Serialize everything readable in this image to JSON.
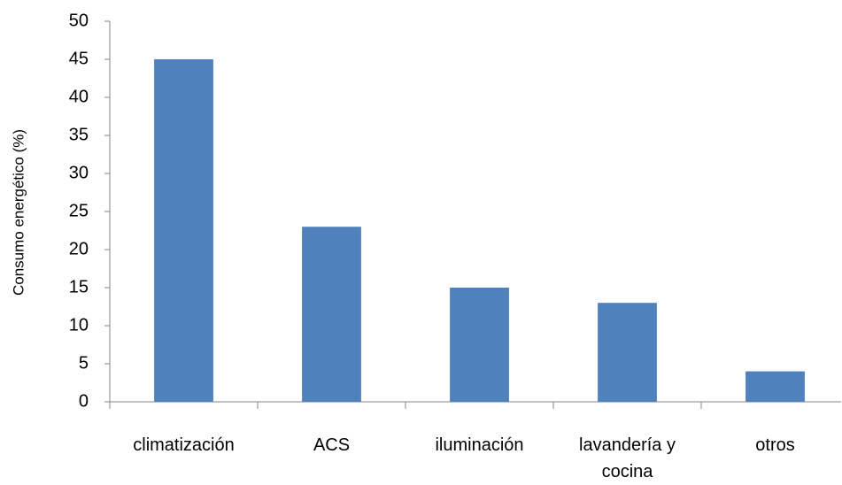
{
  "chart_data": {
    "type": "bar",
    "y_label": "Consumo energético (%)",
    "categories": [
      "climatización",
      "ACS",
      "iluminación",
      "lavandería y cocina",
      "otros"
    ],
    "values": [
      45,
      23,
      15,
      13,
      4
    ],
    "color": "#4f81bd",
    "ylim": [
      0,
      50
    ],
    "yticks": [
      0,
      5,
      10,
      15,
      20,
      25,
      30,
      35,
      40,
      45,
      50
    ],
    "grid": false
  }
}
